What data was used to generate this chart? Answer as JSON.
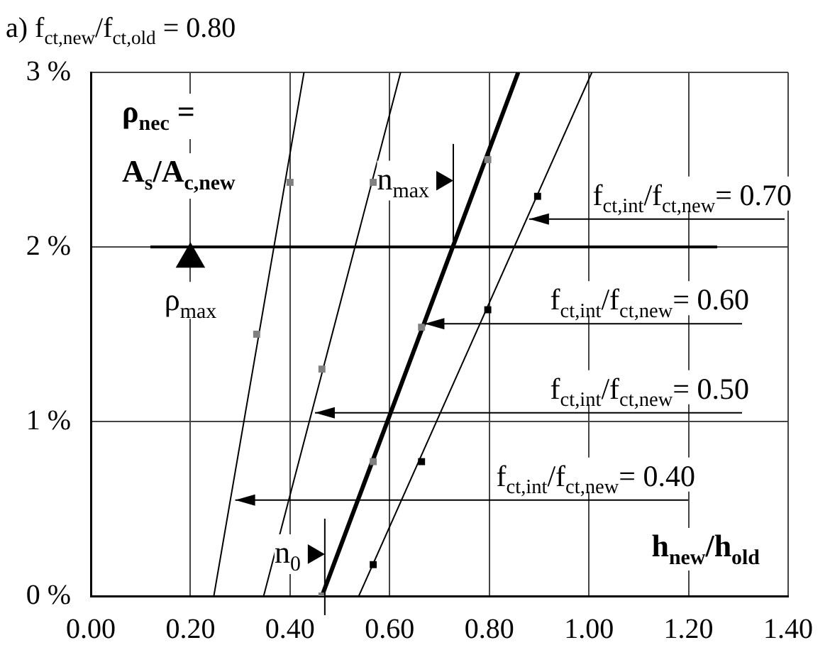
{
  "chart_data": {
    "type": "line",
    "title": "a) f$_{ct,new}$/f$_{ct,old}$ = 0.80",
    "xlabel": "h$_{new}$/h$_{old}$",
    "ylabel": "ρ$_{nec}$ = A$_{s}$/A$_{c,new}$",
    "series": [
      {
        "color": "#000000",
        "marker": "none",
        "x": [
          0.247,
          0.428
        ],
        "values": [
          0,
          3
        ]
      },
      {
        "color": "#000000",
        "marker": "none",
        "x": [
          0.347,
          0.622
        ],
        "values": [
          0,
          3
        ]
      },
      {
        "color": "#000000",
        "marker": "none",
        "x": [
          0.464,
          0.858
        ],
        "values": [
          0,
          3
        ]
      },
      {
        "color": "#000000",
        "marker": "none",
        "x": [
          0.538,
          1.006
        ],
        "values": [
          0,
          3
        ]
      },
      {
        "type": "scatter",
        "name": "ρ$_{max}$",
        "marker": "triangle",
        "color": "#000000",
        "x": [
          0.2
        ],
        "values": [
          1.93
        ]
      },
      {
        "type": "scatter",
        "marker": "triangle",
        "color": "#000000",
        "x": [
          0.705,
          0.447
        ],
        "values": [
          2.38,
          0.24
        ],
        "errors": [
          [
            2.02,
            2.59
          ],
          null
        ]
      },
      {
        "type": "scatter",
        "color": "#808080",
        "x": [
          0.333,
          0.4,
          0.464,
          0.567,
          0.464,
          0.567,
          0.664,
          0.797
        ],
        "values": [
          1.5,
          2.37,
          1.3,
          2.37,
          0,
          0.77,
          1.54,
          2.5
        ]
      },
      {
        "type": "scatter",
        "color": "#000000",
        "x": [
          0.567,
          0.664,
          0.797,
          0.897
        ],
        "values": [
          0.18,
          0.77,
          1.64,
          2.29
        ]
      }
    ],
    "xlim": [
      0,
      1.4
    ],
    "xticks": [
      {
        "value": 0,
        "label": "0.00"
      },
      {
        "value": 0.2,
        "label": "0.20"
      },
      {
        "value": 0.4,
        "label": "0.40"
      },
      {
        "value": 0.6,
        "label": "0.60"
      },
      {
        "value": 0.8,
        "label": "0.80"
      },
      {
        "value": 1,
        "label": "1.00"
      },
      {
        "value": 1.2,
        "label": "1.20"
      },
      {
        "value": 1.4,
        "label": "1.40"
      }
    ],
    "ylim": [
      0,
      3
    ],
    "yticks": [
      {
        "value": 0,
        "label": "0 %"
      },
      {
        "value": 1,
        "label": "1 %"
      },
      {
        "value": 2,
        "label": "2 %"
      },
      {
        "value": 3,
        "label": "3 %"
      }
    ],
    "ref_lines": [
      {
        "axis": "y",
        "value": 2
      }
    ],
    "annotations": [
      {
        "text": "n$_{max}$",
        "x": 0.705,
        "y": 2.38
      },
      {
        "text": "n$_{0}$",
        "x": 0.447,
        "y": 0.24
      },
      {
        "text": "f$_{ct,int}$/f$_{ct,new}$= 0.70",
        "x": 0.88,
        "y": 2.16
      },
      {
        "text": "f$_{ct,int}$/f$_{ct,new}$= 0.60",
        "x": 0.67,
        "y": 1.56
      },
      {
        "text": "f$_{ct,int}$/f$_{ct,new}$= 0.50",
        "x": 0.45,
        "y": 1.05
      },
      {
        "text": "f$_{ct,int}$/f$_{ct,new}$= 0.40",
        "x": 0.29,
        "y": 0.55
      }
    ],
    "grid": true,
    "legend": false,
    "marker": "square",
    "line_style": "solid"
  }
}
